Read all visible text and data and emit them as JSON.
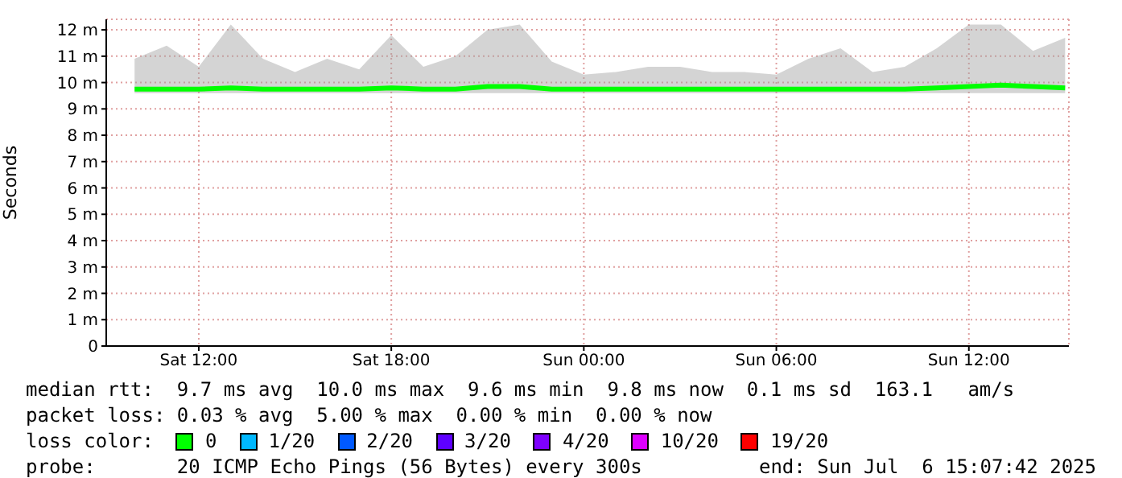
{
  "chart_data": {
    "type": "line",
    "ylabel": "Seconds",
    "x": [
      "2025-07-05T10:00",
      "2025-07-05T11:00",
      "2025-07-05T12:00",
      "2025-07-05T13:00",
      "2025-07-05T14:00",
      "2025-07-05T15:00",
      "2025-07-05T16:00",
      "2025-07-05T17:00",
      "2025-07-05T18:00",
      "2025-07-05T19:00",
      "2025-07-05T20:00",
      "2025-07-05T21:00",
      "2025-07-05T22:00",
      "2025-07-05T23:00",
      "2025-07-06T00:00",
      "2025-07-06T01:00",
      "2025-07-06T02:00",
      "2025-07-06T03:00",
      "2025-07-06T04:00",
      "2025-07-06T05:00",
      "2025-07-06T06:00",
      "2025-07-06T07:00",
      "2025-07-06T08:00",
      "2025-07-06T09:00",
      "2025-07-06T10:00",
      "2025-07-06T11:00",
      "2025-07-06T12:00",
      "2025-07-06T13:00",
      "2025-07-06T14:00",
      "2025-07-06T15:00"
    ],
    "series": [
      {
        "name": "0",
        "color": "#00ff00",
        "values": [
          9.75,
          9.75,
          9.75,
          9.8,
          9.75,
          9.75,
          9.75,
          9.75,
          9.8,
          9.75,
          9.75,
          9.85,
          9.85,
          9.75,
          9.75,
          9.75,
          9.75,
          9.75,
          9.75,
          9.75,
          9.75,
          9.75,
          9.75,
          9.75,
          9.75,
          9.8,
          9.85,
          9.9,
          9.85,
          9.8
        ],
        "lower": [
          9.6,
          9.6,
          9.6,
          9.6,
          9.6,
          9.6,
          9.6,
          9.6,
          9.6,
          9.6,
          9.6,
          9.6,
          9.6,
          9.6,
          9.6,
          9.6,
          9.6,
          9.6,
          9.6,
          9.6,
          9.6,
          9.6,
          9.6,
          9.6,
          9.6,
          9.6,
          9.6,
          9.6,
          9.6,
          9.6
        ],
        "upper": [
          10.9,
          11.4,
          10.6,
          12.2,
          10.9,
          10.4,
          10.9,
          10.5,
          11.8,
          10.6,
          11.0,
          12.0,
          12.2,
          10.8,
          10.3,
          10.4,
          10.6,
          10.6,
          10.4,
          10.4,
          10.3,
          10.9,
          11.3,
          10.4,
          10.6,
          11.3,
          12.2,
          12.2,
          11.2,
          11.7
        ]
      },
      {
        "name": "1/20",
        "color": "#00b8ff",
        "values": [
          null,
          null,
          null,
          null,
          null,
          null,
          null,
          null,
          null,
          null,
          null,
          null,
          null,
          null,
          null,
          null,
          null,
          null,
          null,
          null,
          null,
          null,
          null,
          null,
          null,
          null,
          null,
          null,
          null,
          null
        ]
      },
      {
        "name": "2/20",
        "color": "#0059ff",
        "values": [
          null,
          null,
          null,
          null,
          null,
          null,
          null,
          null,
          null,
          null,
          null,
          null,
          null,
          null,
          null,
          null,
          null,
          null,
          null,
          null,
          null,
          null,
          null,
          null,
          null,
          null,
          null,
          null,
          null,
          null
        ]
      },
      {
        "name": "3/20",
        "color": "#5e00ff",
        "values": [
          null,
          null,
          null,
          null,
          null,
          null,
          null,
          null,
          null,
          null,
          null,
          null,
          null,
          null,
          null,
          null,
          null,
          null,
          null,
          null,
          null,
          null,
          null,
          null,
          null,
          null,
          null,
          null,
          null,
          null
        ]
      },
      {
        "name": "4/20",
        "color": "#7e00ff",
        "values": [
          null,
          null,
          null,
          null,
          null,
          null,
          null,
          null,
          null,
          null,
          null,
          null,
          null,
          null,
          null,
          null,
          null,
          null,
          null,
          null,
          null,
          null,
          null,
          null,
          null,
          null,
          null,
          null,
          null,
          null
        ]
      },
      {
        "name": "10/20",
        "color": "#dd00ff",
        "values": [
          null,
          null,
          null,
          null,
          null,
          null,
          null,
          null,
          null,
          null,
          null,
          null,
          null,
          null,
          null,
          null,
          null,
          null,
          null,
          null,
          null,
          null,
          null,
          null,
          null,
          null,
          null,
          null,
          null,
          null
        ]
      },
      {
        "name": "19/20",
        "color": "#ff0000",
        "values": [
          null,
          null,
          null,
          null,
          null,
          null,
          null,
          null,
          null,
          null,
          null,
          null,
          null,
          null,
          null,
          null,
          null,
          null,
          null,
          null,
          null,
          null,
          null,
          null,
          null,
          null,
          null,
          null,
          null,
          null
        ]
      }
    ],
    "legend_title": "loss color:",
    "legend": "bottom",
    "grid": true,
    "xlim": [
      "2025-07-05T09:07",
      "2025-07-06T15:07"
    ],
    "xticks": [
      {
        "value": "2025-07-05T12:00",
        "label": "Sat 12:00"
      },
      {
        "value": "2025-07-05T18:00",
        "label": "Sat 18:00"
      },
      {
        "value": "2025-07-06T00:00",
        "label": "Sun 00:00"
      },
      {
        "value": "2025-07-06T06:00",
        "label": "Sun 06:00"
      },
      {
        "value": "2025-07-06T12:00",
        "label": "Sun 12:00"
      }
    ],
    "ylim": [
      0,
      12.4
    ],
    "yticks": [
      {
        "value": 0,
        "label": "0"
      },
      {
        "value": 1,
        "label": "1 m"
      },
      {
        "value": 2,
        "label": "2 m"
      },
      {
        "value": 3,
        "label": "3 m"
      },
      {
        "value": 4,
        "label": "4 m"
      },
      {
        "value": 5,
        "label": "5 m"
      },
      {
        "value": 6,
        "label": "6 m"
      },
      {
        "value": 7,
        "label": "7 m"
      },
      {
        "value": 8,
        "label": "8 m"
      },
      {
        "value": 9,
        "label": "9 m"
      },
      {
        "value": 10,
        "label": "10 m"
      },
      {
        "value": 11,
        "label": "11 m"
      },
      {
        "value": 12,
        "label": "12 m"
      }
    ],
    "annotations": [
      "median rtt:  9.7 ms avg  10.0 ms max  9.6 ms min  9.8 ms now  0.1 ms sd  163.1   am/s",
      "packet loss: 0.03 % avg  5.00 % max  0.00 % min  0.00 % now",
      "probe:       20 ICMP Echo Pings (56 Bytes) every 300s",
      "end: Sun Jul  6 15:07:42 2025"
    ]
  }
}
